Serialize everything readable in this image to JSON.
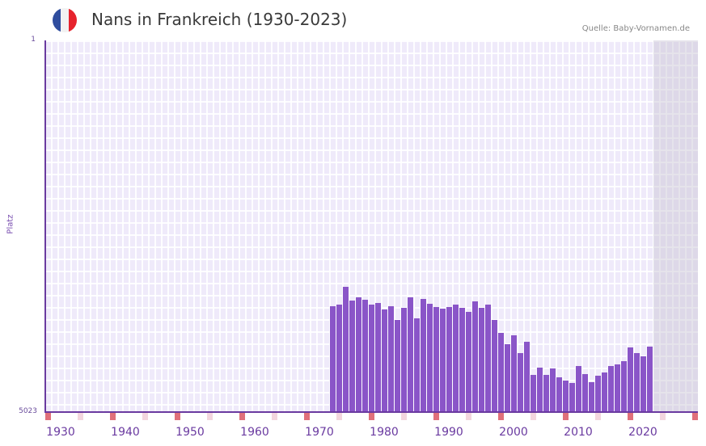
{
  "header": {
    "title": "Nans in Frankreich (1930-2023)",
    "source": "Quelle: Baby-Vornamen.de",
    "flag_colors": [
      "#2f4d9e",
      "#f2f2f2",
      "#e6232d"
    ]
  },
  "axes": {
    "y_top_label": "1",
    "y_bottom_label": "5023",
    "y_title": "Platz"
  },
  "colors": {
    "bar": "#8a55c8",
    "axis": "#6a3aa0",
    "grid_bg": "#efeafa",
    "decade_marker": "#e0707a",
    "half_decade_marker": "#f3d6de"
  },
  "chart_data": {
    "type": "bar",
    "title": "Nans in Frankreich (1930-2023)",
    "xlabel": "",
    "ylabel": "Platz",
    "y_inverted": true,
    "ylim": [
      5023,
      1
    ],
    "x_range": [
      1928,
      2028
    ],
    "x_tick_labels": [
      "1930",
      "1940",
      "1950",
      "1960",
      "1970",
      "1980",
      "1990",
      "2000",
      "2010",
      "2020"
    ],
    "grid": true,
    "legend": null,
    "future_shaded_from": 2022,
    "categories": [
      1972,
      1973,
      1974,
      1975,
      1976,
      1977,
      1978,
      1979,
      1980,
      1981,
      1982,
      1983,
      1984,
      1985,
      1986,
      1987,
      1988,
      1989,
      1990,
      1991,
      1992,
      1993,
      1994,
      1995,
      1996,
      1997,
      1998,
      1999,
      2000,
      2001,
      2002,
      2003,
      2004,
      2005,
      2006,
      2007,
      2008,
      2009,
      2010,
      2011,
      2012,
      2013,
      2014,
      2015,
      2016,
      2017,
      2018,
      2019,
      2020,
      2021
    ],
    "values": [
      3593,
      3571,
      3331,
      3516,
      3473,
      3505,
      3571,
      3549,
      3636,
      3593,
      3778,
      3614,
      3473,
      3756,
      3494,
      3560,
      3604,
      3626,
      3604,
      3571,
      3614,
      3669,
      3527,
      3614,
      3571,
      3778,
      3953,
      4106,
      3986,
      4226,
      4073,
      4520,
      4422,
      4520,
      4433,
      4553,
      4597,
      4630,
      4400,
      4509,
      4619,
      4531,
      4488,
      4400,
      4379,
      4335,
      4149,
      4226,
      4269,
      4138
    ]
  }
}
